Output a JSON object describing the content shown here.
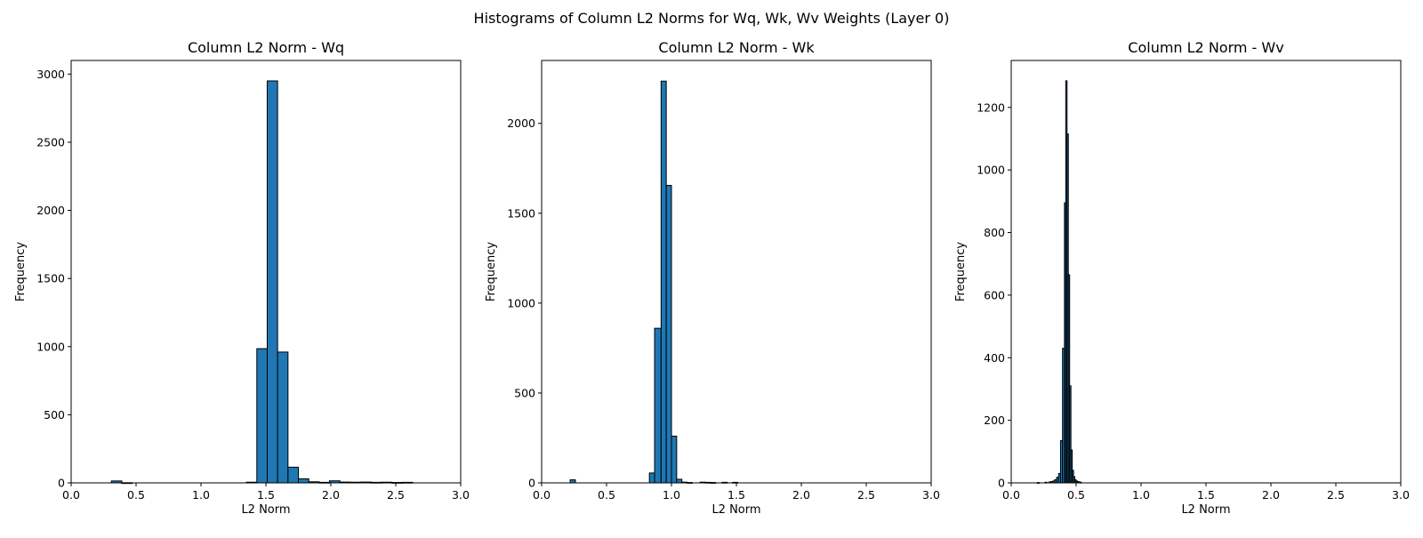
{
  "figure": {
    "title": "Histograms of Column L2 Norms for Wq, Wk, Wv Weights (Layer 0)"
  },
  "style": {
    "bar_fill": "#1f77b4",
    "bar_edge": "#000000"
  },
  "chart_data": [
    {
      "type": "bar",
      "title": "Column L2 Norm - Wq",
      "xlabel": "L2 Norm",
      "ylabel": "Frequency",
      "xlim": [
        0,
        3.0
      ],
      "ylim": [
        0,
        3100
      ],
      "xticks": [
        "0.0",
        "0.5",
        "1.0",
        "1.5",
        "2.0",
        "2.5",
        "3.0"
      ],
      "yticks": [
        "0",
        "500",
        "1000",
        "1500",
        "2000",
        "2500",
        "3000"
      ],
      "ytick_values": [
        0,
        500,
        1000,
        1500,
        2000,
        2500,
        3000
      ],
      "grid": false,
      "bins": [
        {
          "x0": 0.31,
          "x1": 0.39,
          "count": 14
        },
        {
          "x0": 0.39,
          "x1": 0.47,
          "count": 1
        },
        {
          "x0": 1.35,
          "x1": 1.43,
          "count": 5
        },
        {
          "x0": 1.43,
          "x1": 1.51,
          "count": 985
        },
        {
          "x0": 1.51,
          "x1": 1.59,
          "count": 2950
        },
        {
          "x0": 1.59,
          "x1": 1.67,
          "count": 960
        },
        {
          "x0": 1.67,
          "x1": 1.75,
          "count": 115
        },
        {
          "x0": 1.75,
          "x1": 1.83,
          "count": 30
        },
        {
          "x0": 1.83,
          "x1": 1.91,
          "count": 8
        },
        {
          "x0": 1.91,
          "x1": 1.99,
          "count": 4
        },
        {
          "x0": 1.99,
          "x1": 2.07,
          "count": 15
        },
        {
          "x0": 2.07,
          "x1": 2.15,
          "count": 6
        },
        {
          "x0": 2.15,
          "x1": 2.23,
          "count": 5
        },
        {
          "x0": 2.23,
          "x1": 2.31,
          "count": 6
        },
        {
          "x0": 2.31,
          "x1": 2.39,
          "count": 4
        },
        {
          "x0": 2.39,
          "x1": 2.47,
          "count": 5
        },
        {
          "x0": 2.47,
          "x1": 2.55,
          "count": 3
        },
        {
          "x0": 2.55,
          "x1": 2.63,
          "count": 4
        }
      ]
    },
    {
      "type": "bar",
      "title": "Column L2 Norm - Wk",
      "xlabel": "L2 Norm",
      "ylabel": "Frequency",
      "xlim": [
        0,
        3.0
      ],
      "ylim": [
        0,
        2350
      ],
      "xticks": [
        "0.0",
        "0.5",
        "1.0",
        "1.5",
        "2.0",
        "2.5",
        "3.0"
      ],
      "yticks": [
        "0",
        "500",
        "1000",
        "1500",
        "2000"
      ],
      "ytick_values": [
        0,
        500,
        1000,
        1500,
        2000
      ],
      "grid": false,
      "bins": [
        {
          "x0": 0.22,
          "x1": 0.26,
          "count": 17
        },
        {
          "x0": 0.83,
          "x1": 0.87,
          "count": 55
        },
        {
          "x0": 0.87,
          "x1": 0.92,
          "count": 860
        },
        {
          "x0": 0.92,
          "x1": 0.96,
          "count": 2235
        },
        {
          "x0": 0.96,
          "x1": 1.0,
          "count": 1655
        },
        {
          "x0": 1.0,
          "x1": 1.04,
          "count": 260
        },
        {
          "x0": 1.04,
          "x1": 1.08,
          "count": 20
        },
        {
          "x0": 1.08,
          "x1": 1.12,
          "count": 4
        },
        {
          "x0": 1.12,
          "x1": 1.16,
          "count": 2
        },
        {
          "x0": 1.22,
          "x1": 1.26,
          "count": 4
        },
        {
          "x0": 1.26,
          "x1": 1.3,
          "count": 3
        },
        {
          "x0": 1.3,
          "x1": 1.34,
          "count": 2
        },
        {
          "x0": 1.39,
          "x1": 1.43,
          "count": 3
        },
        {
          "x0": 1.47,
          "x1": 1.51,
          "count": 3
        }
      ]
    },
    {
      "type": "bar",
      "title": "Column L2 Norm - Wv",
      "xlabel": "L2 Norm",
      "ylabel": "Frequency",
      "xlim": [
        0,
        3.0
      ],
      "ylim": [
        0,
        1350
      ],
      "xticks": [
        "0.0",
        "0.5",
        "1.0",
        "1.5",
        "2.0",
        "2.5",
        "3.0"
      ],
      "yticks": [
        "0",
        "200",
        "400",
        "600",
        "800",
        "1000",
        "1200"
      ],
      "ytick_values": [
        0,
        200,
        400,
        600,
        800,
        1000,
        1200
      ],
      "grid": false,
      "bins": [
        {
          "x0": 0.2,
          "x1": 0.215,
          "count": 1
        },
        {
          "x0": 0.26,
          "x1": 0.275,
          "count": 2
        },
        {
          "x0": 0.29,
          "x1": 0.305,
          "count": 3
        },
        {
          "x0": 0.305,
          "x1": 0.32,
          "count": 4
        },
        {
          "x0": 0.32,
          "x1": 0.335,
          "count": 6
        },
        {
          "x0": 0.335,
          "x1": 0.35,
          "count": 10
        },
        {
          "x0": 0.35,
          "x1": 0.365,
          "count": 18
        },
        {
          "x0": 0.365,
          "x1": 0.38,
          "count": 30
        },
        {
          "x0": 0.38,
          "x1": 0.395,
          "count": 135
        },
        {
          "x0": 0.395,
          "x1": 0.41,
          "count": 430
        },
        {
          "x0": 0.41,
          "x1": 0.42,
          "count": 895
        },
        {
          "x0": 0.42,
          "x1": 0.43,
          "count": 1285
        },
        {
          "x0": 0.43,
          "x1": 0.44,
          "count": 1115
        },
        {
          "x0": 0.44,
          "x1": 0.45,
          "count": 665
        },
        {
          "x0": 0.45,
          "x1": 0.46,
          "count": 310
        },
        {
          "x0": 0.46,
          "x1": 0.47,
          "count": 105
        },
        {
          "x0": 0.47,
          "x1": 0.48,
          "count": 40
        },
        {
          "x0": 0.48,
          "x1": 0.49,
          "count": 20
        },
        {
          "x0": 0.49,
          "x1": 0.5,
          "count": 10
        },
        {
          "x0": 0.5,
          "x1": 0.51,
          "count": 6
        },
        {
          "x0": 0.51,
          "x1": 0.52,
          "count": 4
        },
        {
          "x0": 0.52,
          "x1": 0.53,
          "count": 3
        },
        {
          "x0": 0.53,
          "x1": 0.54,
          "count": 2
        }
      ]
    }
  ]
}
